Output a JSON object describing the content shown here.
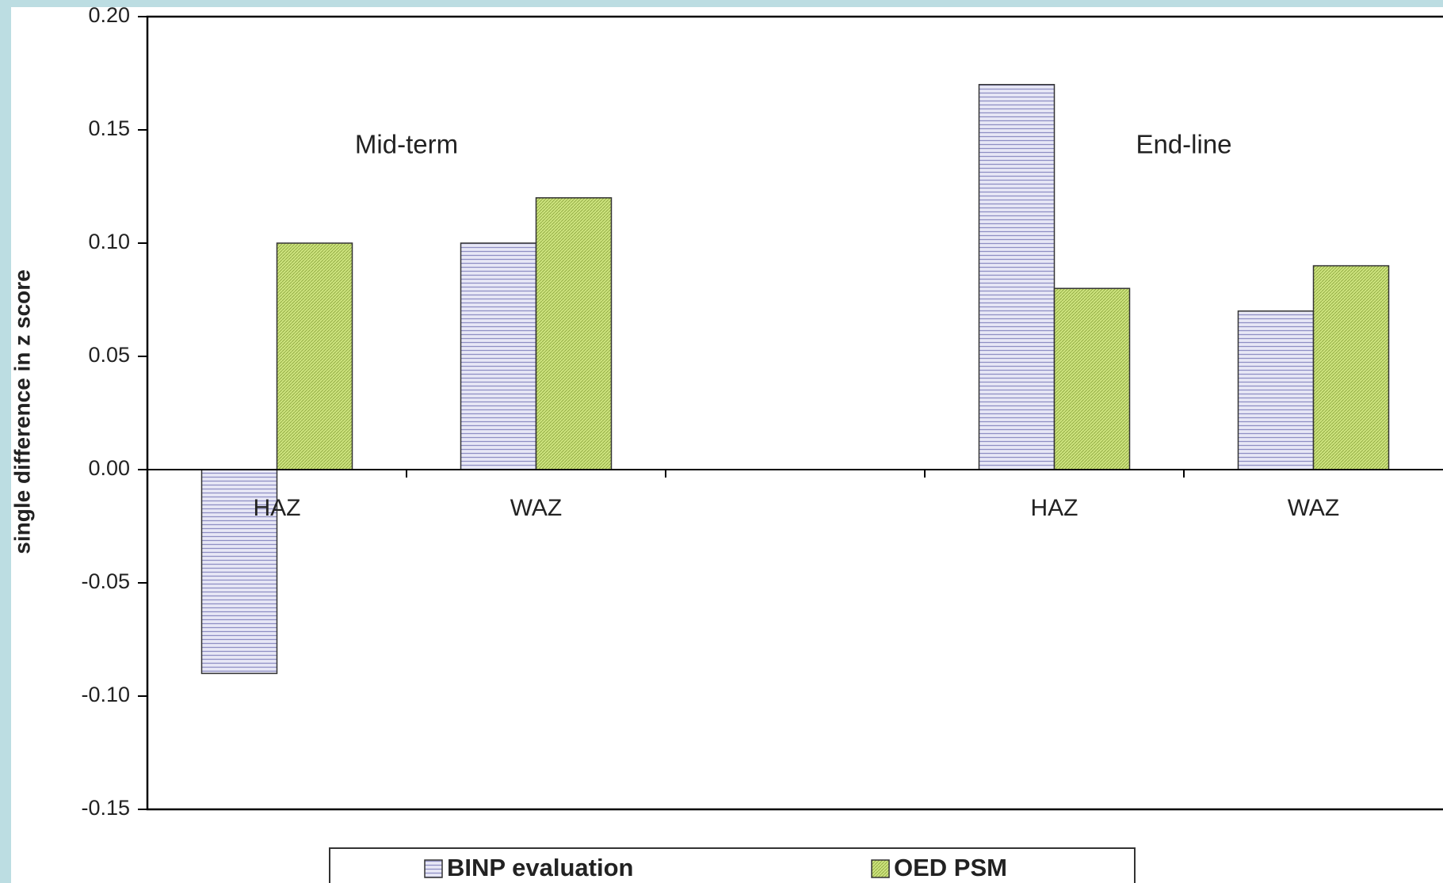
{
  "chart_data": {
    "type": "bar",
    "y_label": "single difference in z score",
    "annotations": [
      "Mid-term",
      "End-line"
    ],
    "categories": [
      "HAZ",
      "WAZ",
      null,
      "HAZ",
      "WAZ"
    ],
    "series": [
      {
        "name": "BINP evaluation",
        "color": "#e8e8f6",
        "values": [
          -0.09,
          0.1,
          null,
          0.17,
          0.07
        ]
      },
      {
        "name": "OED PSM",
        "color": "#cde37e",
        "values": [
          0.1,
          0.12,
          null,
          0.08,
          0.09
        ]
      }
    ],
    "ylim": [
      -0.15,
      0.2
    ],
    "yticks": [
      {
        "value": 0.2,
        "label": "0.20"
      },
      0.15,
      {
        "value": 0.1,
        "label": "0.10"
      },
      0.05,
      {
        "value": 0,
        "label": "0.00"
      },
      -0.05,
      {
        "value": -0.1,
        "label": "-0.10"
      },
      -0.15
    ],
    "legend": "bottom"
  }
}
